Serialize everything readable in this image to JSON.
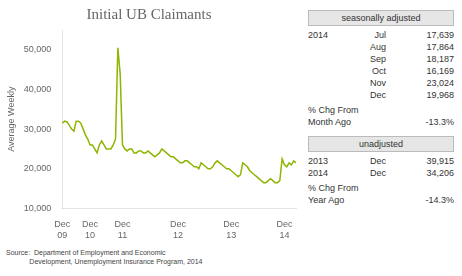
{
  "chart_data": {
    "type": "line",
    "title": "Initial UB Claimants",
    "ylabel": "Average Weekly",
    "categories": [
      "Dec\n09",
      null,
      null,
      null,
      null,
      null,
      null,
      null,
      null,
      null,
      null,
      null,
      "Dec\n10",
      null,
      null,
      null,
      null,
      null,
      null,
      null,
      null,
      null,
      null,
      null,
      null,
      null,
      "Dec\n11",
      null,
      null,
      null,
      null,
      null,
      null,
      null,
      null,
      null,
      null,
      null,
      null,
      null,
      null,
      null,
      null,
      null,
      null,
      null,
      null,
      null,
      null,
      null,
      "Dec\n12",
      null,
      null,
      null,
      null,
      null,
      null,
      null,
      null,
      null,
      null,
      null,
      null,
      null,
      null,
      null,
      null,
      null,
      null,
      null,
      null,
      null,
      null,
      "Dec\n13",
      null,
      null,
      null,
      null,
      null,
      null,
      null,
      null,
      null,
      null,
      null,
      null,
      null,
      null,
      null,
      null,
      null,
      null,
      null,
      null,
      null,
      null,
      "Dec\n14",
      null,
      null,
      null,
      null,
      null
    ],
    "values": [
      31500,
      32000,
      31800,
      31000,
      30000,
      29500,
      32000,
      32000,
      31500,
      30000,
      28500,
      27500,
      26000,
      26000,
      25000,
      24000,
      26000,
      27000,
      26000,
      25000,
      25000,
      25000,
      26000,
      27500,
      50500,
      44000,
      26000,
      25000,
      24500,
      25000,
      25000,
      24000,
      24000,
      24500,
      24500,
      24000,
      24000,
      24500,
      24000,
      23500,
      23000,
      23500,
      24000,
      25000,
      24500,
      24000,
      23500,
      23000,
      23000,
      22500,
      22000,
      21500,
      21500,
      22000,
      22000,
      21500,
      21000,
      20500,
      20500,
      20000,
      21500,
      21000,
      20500,
      20000,
      20000,
      20500,
      21500,
      22000,
      21500,
      21000,
      20500,
      20000,
      20000,
      19500,
      19000,
      18500,
      18000,
      18500,
      21500,
      21000,
      20500,
      19500,
      19000,
      18500,
      18000,
      17500,
      17000,
      16500,
      16500,
      17000,
      17500,
      17000,
      16500,
      16500,
      17000,
      22500,
      21000,
      20500,
      21500,
      21000,
      22000,
      21500
    ],
    "color": "#8db600",
    "ylim": [
      10000,
      55000
    ],
    "yticks": [
      {
        "value": 10000,
        "label": "10,000"
      },
      {
        "value": 20000,
        "label": "20,000"
      },
      {
        "value": 30000,
        "label": "30,000"
      },
      {
        "value": 40000,
        "label": "40,000"
      },
      {
        "value": 50000,
        "label": "50,000"
      }
    ],
    "grid": false,
    "annotations": [
      {
        "heading": "seasonally adjusted",
        "rows": [
          [
            "2014",
            "Jul",
            "17,639"
          ],
          [
            "Aug",
            "17,864"
          ],
          [
            "Sep",
            "18,187"
          ],
          [
            "Oct",
            "16,169"
          ],
          [
            "Nov",
            "23,024"
          ],
          [
            "Dec",
            "19,968"
          ]
        ],
        "change_label": "% Chg From\nMonth Ago",
        "change_value": "-13.3%"
      },
      {
        "heading": "unadjusted",
        "rows": [
          [
            "2013",
            "Dec",
            "39,915"
          ],
          [
            "2014",
            "Dec",
            "34,206"
          ]
        ],
        "change_label": "% Chg From\nYear Ago",
        "change_value": "-14.3%"
      },
      {
        "text": "Source:  Department of Employment and Economic\n            Development, Unemployment Insurance Program, 2014"
      }
    ]
  }
}
